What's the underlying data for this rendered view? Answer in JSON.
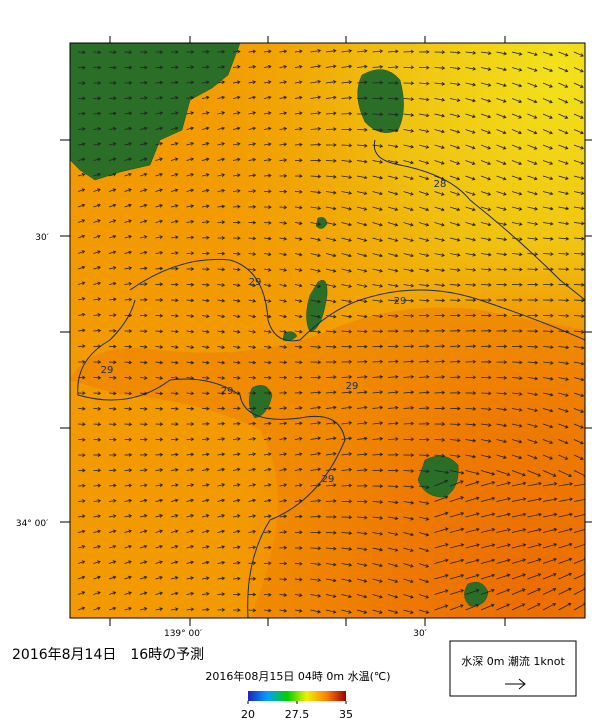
{
  "title": "2016年8月14日　16時の予測",
  "subtitle": "2016年08月15日 04時 0m 水温(℃)",
  "legend_box": {
    "label": "水深 0m 潮流 1knot"
  },
  "axes": {
    "y_labels": [
      "30′",
      "34° 00′"
    ],
    "x_labels": [
      "139° 00′",
      "30′"
    ]
  },
  "colorbar": {
    "ticks": [
      20,
      27.5,
      35
    ]
  },
  "contour_labels": [
    "28",
    "29",
    "29",
    "29",
    "29",
    "29",
    "29"
  ]
}
